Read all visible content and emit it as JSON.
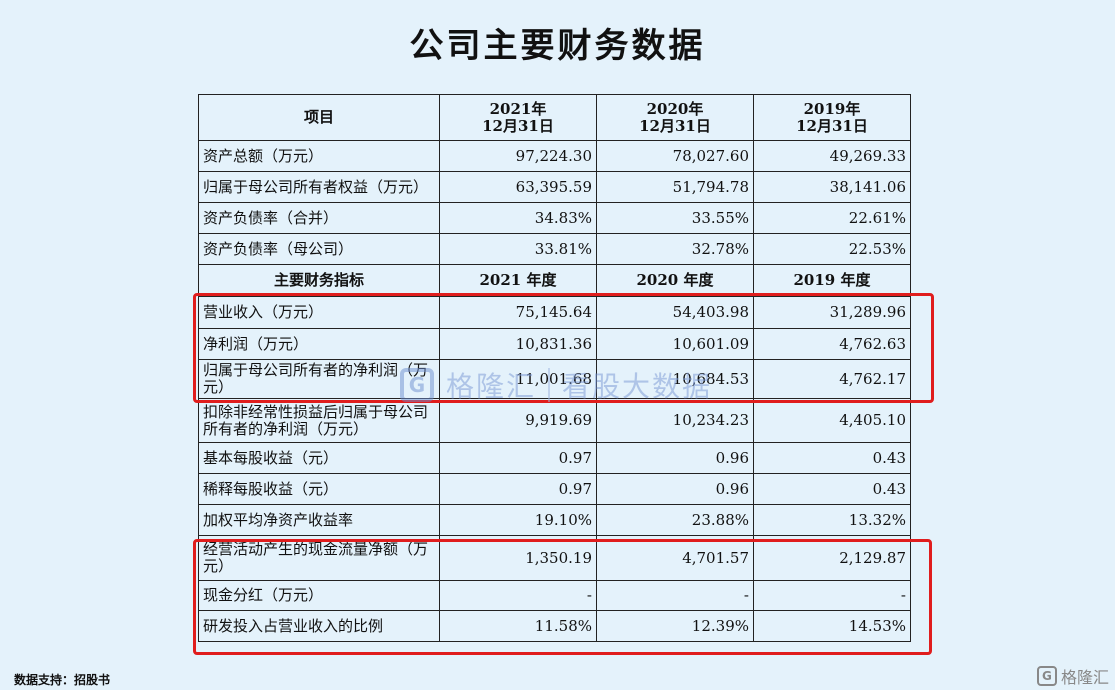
{
  "title": "公司主要财务数据",
  "header1": {
    "item": "项目",
    "c1a": "2021年",
    "c1b": "12月31日",
    "c2a": "2020年",
    "c2b": "12月31日",
    "c3a": "2019年",
    "c3b": "12月31日"
  },
  "header2": {
    "item": "主要财务指标",
    "c1": "2021 年度",
    "c2": "2020 年度",
    "c3": "2019 年度"
  },
  "rows": [
    {
      "label": "资产总额（万元）",
      "v2021": "97,224.30",
      "v2020": "78,027.60",
      "v2019": "49,269.33"
    },
    {
      "label": "归属于母公司所有者权益（万元）",
      "v2021": "63,395.59",
      "v2020": "51,794.78",
      "v2019": "38,141.06"
    },
    {
      "label": "资产负债率（合并）",
      "v2021": "34.83%",
      "v2020": "33.55%",
      "v2019": "22.61%"
    },
    {
      "label": "资产负债率（母公司）",
      "v2021": "33.81%",
      "v2020": "32.78%",
      "v2019": "22.53%"
    },
    {
      "label": "营业收入（万元）",
      "v2021": "75,145.64",
      "v2020": "54,403.98",
      "v2019": "31,289.96"
    },
    {
      "label": "净利润（万元）",
      "v2021": "10,831.36",
      "v2020": "10,601.09",
      "v2019": "4,762.63"
    },
    {
      "label": "归属于母公司所有者的净利润（万元）",
      "v2021": "11,001.68",
      "v2020": "10,684.53",
      "v2019": "4,762.17"
    },
    {
      "label": "扣除非经常性损益后归属于母公司所有者的净利润（万元）",
      "v2021": "9,919.69",
      "v2020": "10,234.23",
      "v2019": "4,405.10"
    },
    {
      "label": "基本每股收益（元）",
      "v2021": "0.97",
      "v2020": "0.96",
      "v2019": "0.43"
    },
    {
      "label": "稀释每股收益（元）",
      "v2021": "0.97",
      "v2020": "0.96",
      "v2019": "0.43"
    },
    {
      "label": "加权平均净资产收益率",
      "v2021": "19.10%",
      "v2020": "23.88%",
      "v2019": "13.32%"
    },
    {
      "label": "经营活动产生的现金流量净额（万元）",
      "v2021": "1,350.19",
      "v2020": "4,701.57",
      "v2019": "2,129.87"
    },
    {
      "label": "现金分红（万元）",
      "v2021": "-",
      "v2020": "-",
      "v2019": "-"
    },
    {
      "label": "研发投入占营业收入的比例",
      "v2021": "11.58%",
      "v2020": "12.39%",
      "v2019": "14.53%"
    }
  ],
  "watermark": {
    "logo": "G",
    "name": "格隆汇",
    "tagline": "看股大数据"
  },
  "source": "数据支持：招股书",
  "corner": {
    "logo": "G",
    "name": "格隆汇"
  },
  "highlight_color": "#e01d1d"
}
